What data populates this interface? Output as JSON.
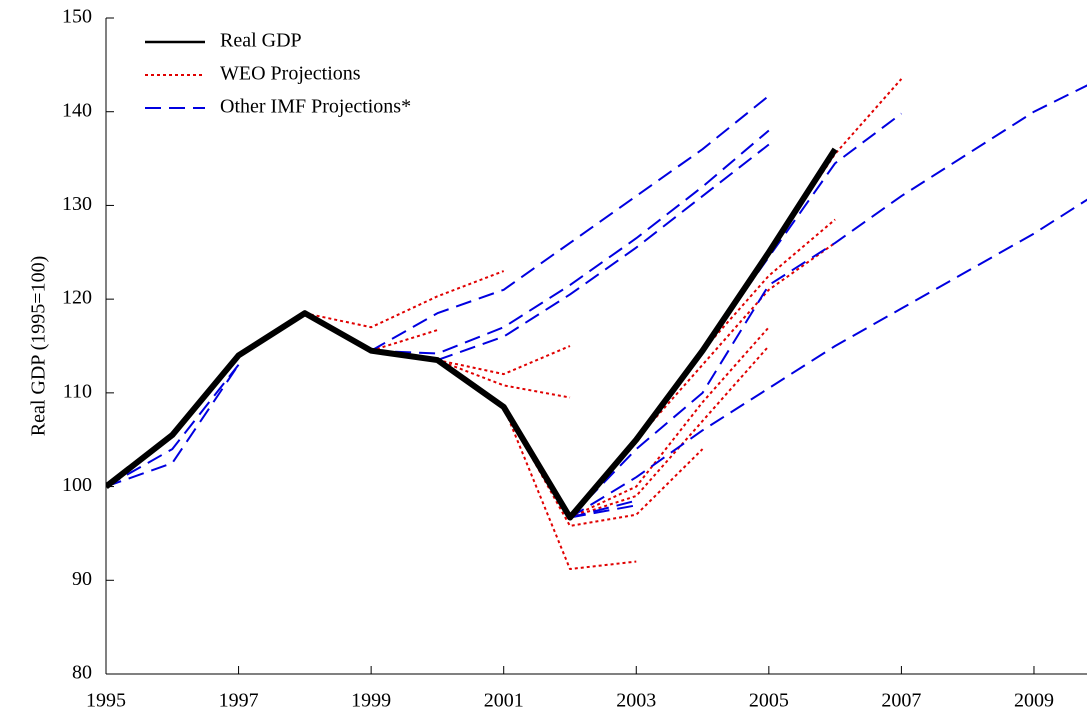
{
  "chart_data": {
    "type": "line",
    "y_label": "Real GDP (1995=100)",
    "x": [
      1995,
      1996,
      1997,
      1998,
      1999,
      2000,
      2001,
      2002,
      2003,
      2004,
      2005,
      2006,
      2007,
      2008,
      2009,
      2010
    ],
    "xlim": [
      1995,
      2009.8
    ],
    "xticks": [
      1995,
      1997,
      1999,
      2001,
      2003,
      2005,
      2007,
      2009
    ],
    "ylim": [
      80,
      150
    ],
    "yticks": [
      80,
      90,
      100,
      110,
      120,
      130,
      140,
      150
    ],
    "legend": "upper left",
    "series": [
      {
        "name": "Real GDP",
        "color": "#000000",
        "style": "solid",
        "lines": [
          [
            100,
            105.5,
            114,
            118.5,
            114.5,
            113.5,
            108.5,
            96.7,
            105,
            114.5,
            125,
            136,
            null,
            null,
            null,
            null
          ]
        ]
      },
      {
        "name": "WEO Projections",
        "color": "#e00000",
        "style": "dotted",
        "lines": [
          [
            null,
            null,
            null,
            118.5,
            117,
            120.3,
            123,
            null,
            null,
            null,
            null,
            null,
            null,
            null,
            null,
            null
          ],
          [
            null,
            null,
            null,
            null,
            114.5,
            116.7,
            null,
            null,
            null,
            null,
            null,
            null,
            null,
            null,
            null,
            null
          ],
          [
            null,
            null,
            null,
            null,
            null,
            113.5,
            110.8,
            109.5,
            null,
            null,
            null,
            null,
            null,
            null,
            null,
            null
          ],
          [
            null,
            null,
            null,
            null,
            null,
            113.5,
            112,
            115,
            null,
            null,
            null,
            null,
            null,
            null,
            null,
            null
          ],
          [
            null,
            null,
            null,
            null,
            null,
            null,
            108.5,
            91.2,
            92,
            null,
            null,
            null,
            null,
            null,
            null,
            null
          ],
          [
            null,
            null,
            null,
            null,
            null,
            null,
            108.5,
            95.8,
            97,
            104,
            null,
            null,
            null,
            null,
            null,
            null
          ],
          [
            null,
            null,
            null,
            null,
            null,
            null,
            null,
            96.7,
            99,
            107,
            115,
            null,
            null,
            null,
            null,
            null
          ],
          [
            null,
            null,
            null,
            null,
            null,
            null,
            null,
            96.7,
            100,
            109,
            117,
            null,
            null,
            null,
            null,
            null
          ],
          [
            null,
            null,
            null,
            null,
            null,
            null,
            null,
            null,
            105,
            113,
            121,
            126,
            null,
            null,
            null,
            null
          ],
          [
            null,
            null,
            null,
            null,
            null,
            null,
            null,
            null,
            null,
            114.5,
            122.5,
            128.5,
            null,
            null,
            null,
            null
          ],
          [
            null,
            null,
            null,
            null,
            null,
            null,
            null,
            null,
            null,
            null,
            125,
            135.5,
            143.5,
            null,
            null,
            null
          ]
        ]
      },
      {
        "name": "Other IMF Projections*",
        "color": "#0000e0",
        "style": "dashed",
        "lines": [
          [
            100,
            102.5,
            113,
            null,
            null,
            null,
            null,
            null,
            null,
            null,
            null,
            null,
            null,
            null,
            null,
            null
          ],
          [
            100,
            104,
            113,
            null,
            null,
            null,
            null,
            null,
            null,
            null,
            null,
            null,
            null,
            null,
            null,
            null
          ],
          [
            null,
            null,
            null,
            null,
            114.5,
            118.5,
            121,
            126,
            131,
            136,
            141.7,
            null,
            null,
            null,
            null,
            null
          ],
          [
            null,
            null,
            null,
            null,
            114.5,
            114.2,
            117,
            121.5,
            126.5,
            132,
            138,
            null,
            null,
            null,
            null,
            null
          ],
          [
            null,
            null,
            null,
            null,
            null,
            113.5,
            116,
            120.5,
            125.5,
            131,
            136.5,
            null,
            null,
            null,
            null,
            null
          ],
          [
            null,
            null,
            null,
            null,
            null,
            null,
            null,
            96.7,
            101,
            106,
            110.5,
            115,
            119,
            123,
            127,
            131.5
          ],
          [
            null,
            null,
            null,
            null,
            null,
            null,
            null,
            96.7,
            104,
            110,
            121.5,
            126,
            131,
            135.5,
            140,
            143.5
          ],
          [
            null,
            null,
            null,
            null,
            null,
            null,
            null,
            96.7,
            98,
            null,
            null,
            null,
            null,
            null,
            null,
            null
          ],
          [
            null,
            null,
            null,
            null,
            null,
            null,
            null,
            96.7,
            98.5,
            null,
            null,
            null,
            null,
            null,
            null,
            null
          ],
          [
            null,
            null,
            null,
            null,
            null,
            null,
            null,
            null,
            null,
            114.5,
            124.5,
            134.5,
            139.8,
            null,
            null,
            null
          ]
        ]
      }
    ]
  }
}
